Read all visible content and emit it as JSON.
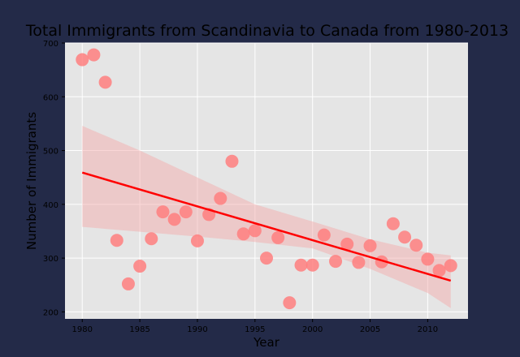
{
  "chart_data": {
    "type": "scatter",
    "title": "Total Immigrants from Scandinavia to Canada from 1980-2013",
    "xlabel": "Year",
    "ylabel": "Number of Immigrants",
    "xlim": [
      1978.5,
      2013.5
    ],
    "ylim": [
      187,
      700
    ],
    "xticks": [
      1980,
      1985,
      1990,
      1995,
      2000,
      2005,
      2010
    ],
    "yticks": [
      200,
      300,
      400,
      500,
      600,
      700
    ],
    "grid": true,
    "background_color": "#e5e5e5",
    "figure_color": "#232a48",
    "point_color": "#ff7f7f",
    "line_color": "#ff0000",
    "band_color": "#f4a7a7",
    "points": [
      {
        "x": 1980,
        "y": 669
      },
      {
        "x": 1981,
        "y": 678
      },
      {
        "x": 1982,
        "y": 627
      },
      {
        "x": 1983,
        "y": 333
      },
      {
        "x": 1984,
        "y": 252
      },
      {
        "x": 1985,
        "y": 285
      },
      {
        "x": 1986,
        "y": 336
      },
      {
        "x": 1987,
        "y": 386
      },
      {
        "x": 1988,
        "y": 372
      },
      {
        "x": 1989,
        "y": 386
      },
      {
        "x": 1990,
        "y": 332
      },
      {
        "x": 1991,
        "y": 381
      },
      {
        "x": 1992,
        "y": 411
      },
      {
        "x": 1993,
        "y": 480
      },
      {
        "x": 1994,
        "y": 345
      },
      {
        "x": 1995,
        "y": 351
      },
      {
        "x": 1996,
        "y": 300
      },
      {
        "x": 1997,
        "y": 338
      },
      {
        "x": 1998,
        "y": 217
      },
      {
        "x": 1999,
        "y": 287
      },
      {
        "x": 2000,
        "y": 287
      },
      {
        "x": 2001,
        "y": 343
      },
      {
        "x": 2002,
        "y": 294
      },
      {
        "x": 2003,
        "y": 326
      },
      {
        "x": 2004,
        "y": 292
      },
      {
        "x": 2005,
        "y": 323
      },
      {
        "x": 2006,
        "y": 293
      },
      {
        "x": 2007,
        "y": 364
      },
      {
        "x": 2008,
        "y": 339
      },
      {
        "x": 2009,
        "y": 324
      },
      {
        "x": 2010,
        "y": 298
      },
      {
        "x": 2011,
        "y": 277
      },
      {
        "x": 2012,
        "y": 286
      }
    ],
    "regression": {
      "x": [
        1980,
        2012
      ],
      "y": [
        459,
        258
      ]
    },
    "confidence_band": {
      "x": [
        1980,
        1985,
        1990,
        1995,
        2000,
        2005,
        2010,
        2012
      ],
      "upper": [
        546,
        500,
        450,
        400,
        368,
        335,
        310,
        305
      ],
      "lower": [
        358,
        349,
        340,
        330,
        318,
        280,
        235,
        207
      ]
    }
  }
}
